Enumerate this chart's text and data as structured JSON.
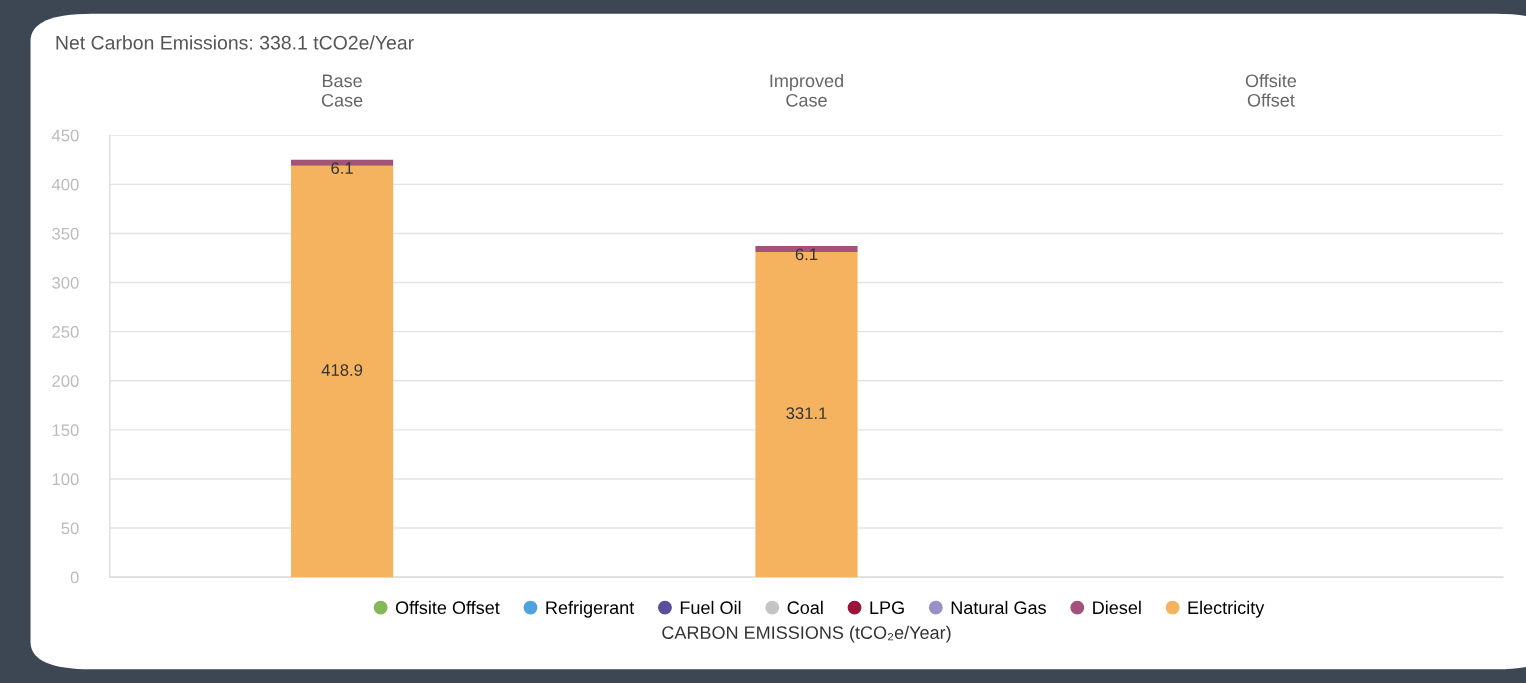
{
  "chart_data": {
    "type": "bar",
    "title": "Net Carbon Emissions: 338.1 tCO2e/Year",
    "xlabel": "CARBON EMISSIONS (tCO₂e/Year)",
    "categories": [
      "Base\nCase",
      "Improved\nCase",
      "Offsite\nOffset"
    ],
    "stacked": true,
    "series": [
      {
        "name": "Electricity",
        "color": "#f5b25f",
        "values": [
          418.9,
          331.1,
          null
        ],
        "value_labels": [
          "418.9",
          "331.1",
          null
        ]
      },
      {
        "name": "Diesel",
        "color": "#a3527a",
        "values": [
          6.1,
          6.1,
          null
        ],
        "value_labels": [
          "6.1",
          "6.1",
          null
        ]
      },
      {
        "name": "Natural Gas",
        "color": "#9b8fc9",
        "values": [
          0,
          0,
          null
        ]
      },
      {
        "name": "LPG",
        "color": "#9c1538",
        "values": [
          0,
          0,
          null
        ]
      },
      {
        "name": "Coal",
        "color": "#c4c4c4",
        "values": [
          0,
          0,
          null
        ]
      },
      {
        "name": "Fuel Oil",
        "color": "#5b4f9c",
        "values": [
          0,
          0,
          null
        ]
      },
      {
        "name": "Refrigerant",
        "color": "#4ea3dc",
        "values": [
          0,
          0,
          null
        ]
      },
      {
        "name": "Offsite Offset",
        "color": "#86b85b",
        "values": [
          0,
          0,
          null
        ]
      }
    ],
    "ylim": [
      0,
      450
    ],
    "yticks": [
      0,
      50,
      100,
      150,
      200,
      250,
      300,
      350,
      400,
      450
    ],
    "grid": "y",
    "legend": "bottom",
    "marker": "circle"
  }
}
